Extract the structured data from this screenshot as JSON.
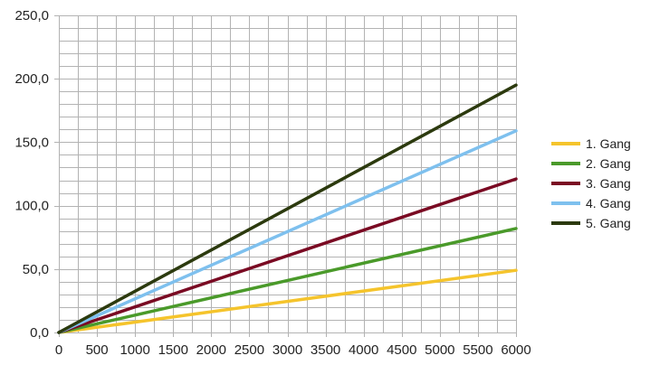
{
  "chart_data": {
    "type": "line",
    "x": [
      0,
      6000
    ],
    "xticks": [
      0,
      500,
      1000,
      1500,
      2000,
      2500,
      3000,
      3500,
      4000,
      4500,
      5000,
      5500,
      6000
    ],
    "xticklabels": [
      "0",
      "500",
      "1000",
      "1500",
      "2000",
      "2500",
      "3000",
      "3500",
      "4000",
      "4500",
      "5000",
      "5500",
      "6000"
    ],
    "yticks": [
      0,
      50,
      100,
      150,
      200,
      250
    ],
    "yticklabels": [
      "0,0",
      "50,0",
      "100,0",
      "150,0",
      "200,0",
      "250,0"
    ],
    "xlim": [
      0,
      6000
    ],
    "ylim": [
      0,
      250
    ],
    "xlabel": "",
    "ylabel": "",
    "title": "",
    "grid": true,
    "minor_x_gridlines_per_major": 2,
    "minor_y_gridlines_per_major": 5,
    "legend_position": "right",
    "series": [
      {
        "name": "1. Gang",
        "values": [
          0,
          49
        ],
        "color": "#f5c42c"
      },
      {
        "name": "2. Gang",
        "values": [
          0,
          82
        ],
        "color": "#4a9a2a"
      },
      {
        "name": "3. Gang",
        "values": [
          0,
          121
        ],
        "color": "#7a0a23"
      },
      {
        "name": "4. Gang",
        "values": [
          0,
          159
        ],
        "color": "#7ec0ee"
      },
      {
        "name": "5. Gang",
        "values": [
          0,
          195
        ],
        "color": "#2c3a0e"
      }
    ]
  }
}
